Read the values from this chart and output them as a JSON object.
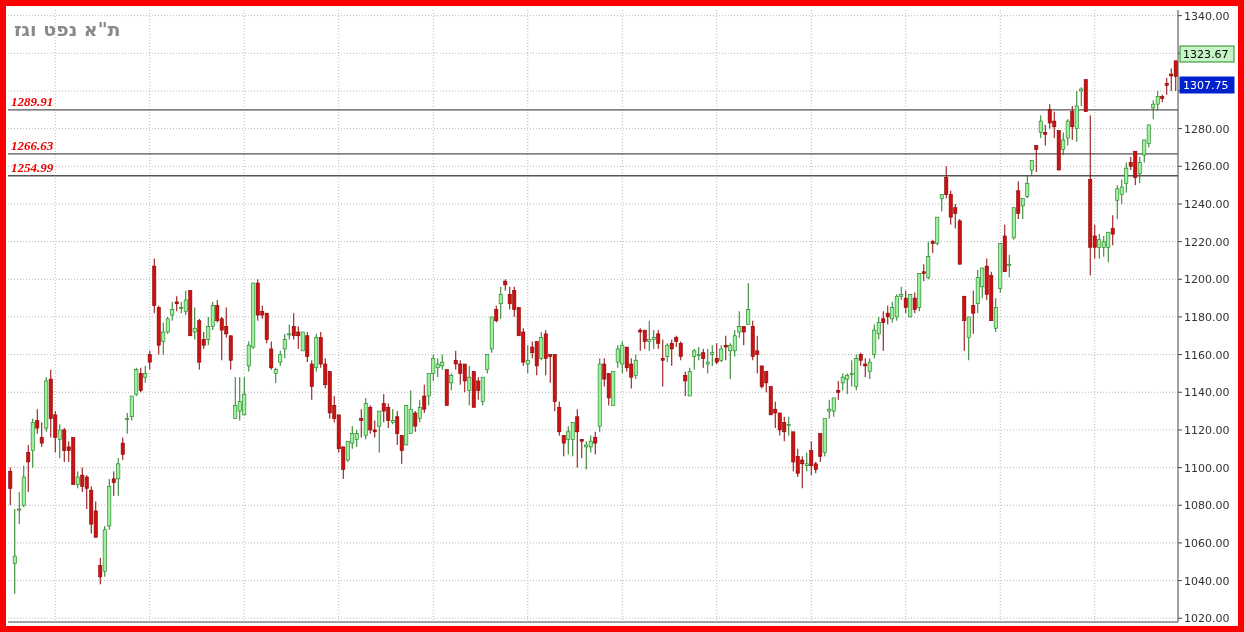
{
  "chart_data": {
    "type": "candlestick",
    "title": "ת\"א נפט וגז",
    "categories": [
      null,
      null,
      null,
      null,
      null,
      null,
      null,
      null,
      null,
      null,
      null,
      null,
      null,
      null,
      null,
      null,
      null,
      null,
      null,
      null,
      null,
      null,
      null,
      null,
      null,
      null,
      null,
      null,
      null,
      null,
      null,
      null,
      null,
      null,
      null,
      null,
      null,
      null,
      null,
      null,
      null,
      null,
      null,
      null,
      null,
      null,
      null,
      null,
      null,
      null,
      null,
      null,
      null,
      null,
      null,
      null,
      null,
      null,
      null,
      null,
      null,
      null,
      null,
      null,
      null,
      null,
      null,
      null,
      null,
      null,
      null,
      null,
      null,
      null,
      null,
      null,
      null,
      null,
      null,
      null,
      null,
      null,
      null,
      null,
      null,
      null,
      null,
      null,
      null,
      null,
      null,
      null,
      null,
      null,
      null,
      null,
      null,
      null,
      null,
      null,
      null,
      null,
      null,
      null,
      null,
      null,
      null,
      null,
      null,
      null,
      null,
      null,
      null,
      null,
      null,
      null,
      null,
      null,
      null,
      null,
      null,
      null,
      null,
      null,
      null,
      null,
      null,
      null,
      null,
      null,
      null,
      null,
      null,
      null,
      null,
      null,
      null,
      null,
      null,
      null,
      null,
      null,
      null,
      null,
      null,
      null,
      null,
      null,
      null,
      null,
      null,
      null,
      null,
      null,
      null,
      null,
      null,
      null,
      null,
      null,
      null,
      null,
      null,
      null,
      null,
      null,
      null,
      null,
      null,
      null,
      null,
      null,
      null,
      null,
      null,
      null,
      null,
      null,
      null,
      null,
      null,
      null,
      null,
      null,
      null,
      null,
      null,
      null,
      null,
      null,
      null,
      null,
      null,
      null,
      null,
      null,
      null,
      null,
      null,
      null,
      null,
      null,
      null,
      null,
      null,
      null,
      null,
      null,
      null,
      null,
      null,
      null,
      null,
      null,
      null,
      null,
      null,
      null,
      null,
      null,
      null,
      null,
      null,
      null,
      null,
      null,
      null,
      null,
      null,
      null,
      null,
      null,
      null,
      null,
      null,
      null,
      null,
      null,
      null,
      null,
      null,
      null,
      null,
      null,
      null,
      null,
      null,
      null,
      null,
      null,
      null,
      null,
      null,
      null,
      null,
      null,
      null,
      null,
      null,
      null
    ],
    "ohlc": [
      [
        1098,
        1100,
        1080,
        1089
      ],
      [
        1049,
        1078,
        1033,
        1053
      ],
      [
        1078,
        1087,
        1070,
        1078
      ],
      [
        1080,
        1101,
        1079,
        1095
      ],
      [
        1108,
        1112,
        1087,
        1103
      ],
      [
        1109,
        1126,
        1100,
        1124
      ],
      [
        1125,
        1131,
        1118,
        1121
      ],
      [
        1116,
        1124,
        1111,
        1113
      ],
      [
        1121,
        1148,
        1119,
        1146
      ],
      [
        1147,
        1152,
        1116,
        1126
      ],
      [
        1128,
        1130,
        1108,
        1116
      ],
      [
        1115,
        1123,
        1105,
        1120
      ],
      [
        1120,
        1121,
        1103,
        1109
      ],
      [
        1111,
        1114,
        1103,
        1109
      ],
      [
        1116,
        1116,
        1091,
        1091
      ],
      [
        1091,
        1098,
        1089,
        1095
      ],
      [
        1096,
        1100,
        1087,
        1090
      ],
      [
        1095,
        1096,
        1078,
        1089
      ],
      [
        1088,
        1090,
        1065,
        1070
      ],
      [
        1077,
        1082,
        1063,
        1063
      ],
      [
        1048,
        1052,
        1038,
        1042
      ],
      [
        1045,
        1069,
        1042,
        1067
      ],
      [
        1069,
        1094,
        1067,
        1090
      ],
      [
        1094,
        1098,
        1085,
        1092
      ],
      [
        1094,
        1105,
        1085,
        1102
      ],
      [
        1113,
        1116,
        1104,
        1107
      ],
      [
        1126,
        1129,
        1118,
        1126
      ],
      [
        1127,
        1138,
        1125,
        1138
      ],
      [
        1139,
        1153,
        1138,
        1152
      ],
      [
        1150,
        1153,
        1140,
        1141
      ],
      [
        1148,
        1154,
        1145,
        1150
      ],
      [
        1160,
        1162,
        1152,
        1156
      ],
      [
        1207,
        1211,
        1182,
        1186
      ],
      [
        1185,
        1186,
        1160,
        1165
      ],
      [
        1167,
        1177,
        1160,
        1172
      ],
      [
        1172,
        1180,
        1171,
        1179
      ],
      [
        1181,
        1188,
        1178,
        1184
      ],
      [
        1188,
        1191,
        1183,
        1187
      ],
      [
        1185,
        1188,
        1182,
        1185
      ],
      [
        1183,
        1194,
        1181,
        1189
      ],
      [
        1194,
        1194,
        1170,
        1170
      ],
      [
        1172,
        1185,
        1168,
        1174
      ],
      [
        1178,
        1179,
        1152,
        1156
      ],
      [
        1168,
        1172,
        1163,
        1165
      ],
      [
        1168,
        1180,
        1165,
        1175
      ],
      [
        1175,
        1188,
        1173,
        1186
      ],
      [
        1186,
        1189,
        1177,
        1178
      ],
      [
        1179,
        1180,
        1157,
        1173
      ],
      [
        1175,
        1185,
        1169,
        1171
      ],
      [
        1170,
        1170,
        1152,
        1157
      ],
      [
        1126,
        1148,
        1126,
        1133
      ],
      [
        1130,
        1148,
        1125,
        1135
      ],
      [
        1128,
        1148,
        1128,
        1139
      ],
      [
        1154,
        1167,
        1151,
        1165
      ],
      [
        1164,
        1198,
        1163,
        1198
      ],
      [
        1198,
        1200,
        1178,
        1181
      ],
      [
        1183,
        1186,
        1179,
        1181
      ],
      [
        1182,
        1182,
        1166,
        1168
      ],
      [
        1163,
        1167,
        1152,
        1153
      ],
      [
        1150,
        1153,
        1145,
        1152
      ],
      [
        1156,
        1162,
        1154,
        1160
      ],
      [
        1163,
        1171,
        1158,
        1168
      ],
      [
        1171,
        1176,
        1168,
        1171
      ],
      [
        1175,
        1182,
        1168,
        1170
      ],
      [
        1172,
        1175,
        1163,
        1170
      ],
      [
        1162,
        1172,
        1162,
        1172
      ],
      [
        1170,
        1172,
        1156,
        1159
      ],
      [
        1155,
        1157,
        1136,
        1143
      ],
      [
        1153,
        1171,
        1151,
        1169
      ],
      [
        1169,
        1172,
        1153,
        1155
      ],
      [
        1155,
        1158,
        1142,
        1144
      ],
      [
        1151,
        1151,
        1126,
        1129
      ],
      [
        1133,
        1138,
        1124,
        1126
      ],
      [
        1128,
        1128,
        1108,
        1110
      ],
      [
        1111,
        1111,
        1094,
        1099
      ],
      [
        1104,
        1114,
        1103,
        1114
      ],
      [
        1113,
        1122,
        1110,
        1118
      ],
      [
        1115,
        1120,
        1111,
        1118
      ],
      [
        1126,
        1131,
        1116,
        1125
      ],
      [
        1117,
        1137,
        1115,
        1134
      ],
      [
        1132,
        1133,
        1118,
        1120
      ],
      [
        1120,
        1125,
        1116,
        1119
      ],
      [
        1122,
        1130,
        1108,
        1130
      ],
      [
        1134,
        1139,
        1124,
        1130
      ],
      [
        1132,
        1134,
        1121,
        1125
      ],
      [
        1124,
        1131,
        1123,
        1125
      ],
      [
        1127,
        1130,
        1112,
        1118
      ],
      [
        1117,
        1117,
        1102,
        1109
      ],
      [
        1112,
        1133,
        1112,
        1133
      ],
      [
        1118,
        1141,
        1118,
        1131
      ],
      [
        1129,
        1130,
        1119,
        1122
      ],
      [
        1126,
        1136,
        1124,
        1132
      ],
      [
        1138,
        1144,
        1129,
        1131
      ],
      [
        1138,
        1150,
        1133,
        1150
      ],
      [
        1150,
        1160,
        1146,
        1158
      ],
      [
        1153,
        1158,
        1148,
        1155
      ],
      [
        1154,
        1160,
        1152,
        1156
      ],
      [
        1152,
        1152,
        1133,
        1133
      ],
      [
        1145,
        1150,
        1141,
        1149
      ],
      [
        1157,
        1162,
        1152,
        1155
      ],
      [
        1155,
        1157,
        1144,
        1150
      ],
      [
        1155,
        1155,
        1140,
        1146
      ],
      [
        1141,
        1154,
        1133,
        1148
      ],
      [
        1151,
        1151,
        1132,
        1132
      ],
      [
        1146,
        1148,
        1136,
        1141
      ],
      [
        1135,
        1148,
        1133,
        1148
      ],
      [
        1152,
        1160,
        1150,
        1160
      ],
      [
        1163,
        1180,
        1161,
        1180
      ],
      [
        1184,
        1186,
        1177,
        1178
      ],
      [
        1187,
        1196,
        1179,
        1192
      ],
      [
        1199,
        1200,
        1194,
        1197
      ],
      [
        1192,
        1196,
        1184,
        1187
      ],
      [
        1194,
        1196,
        1180,
        1184
      ],
      [
        1185,
        1185,
        1170,
        1170
      ],
      [
        1172,
        1174,
        1154,
        1156
      ],
      [
        1155,
        1165,
        1150,
        1157
      ],
      [
        1164,
        1167,
        1158,
        1161
      ],
      [
        1167,
        1167,
        1149,
        1154
      ],
      [
        1158,
        1172,
        1157,
        1169
      ],
      [
        1171,
        1173,
        1149,
        1158
      ],
      [
        1160,
        1160,
        1145,
        1159
      ],
      [
        1160,
        1160,
        1130,
        1135
      ],
      [
        1132,
        1135,
        1117,
        1119
      ],
      [
        1117,
        1117,
        1106,
        1113
      ],
      [
        1115,
        1122,
        1107,
        1119
      ],
      [
        1115,
        1124,
        1106,
        1124
      ],
      [
        1127,
        1131,
        1100,
        1119
      ],
      [
        1115,
        1115,
        1105,
        1114
      ],
      [
        1111,
        1114,
        1099,
        1112
      ],
      [
        1111,
        1117,
        1108,
        1114
      ],
      [
        1116,
        1119,
        1107,
        1113
      ],
      [
        1122,
        1158,
        1119,
        1155
      ],
      [
        1155,
        1158,
        1143,
        1147
      ],
      [
        1150,
        1150,
        1133,
        1137
      ],
      [
        1133,
        1151,
        1133,
        1151
      ],
      [
        1156,
        1165,
        1153,
        1163
      ],
      [
        1155,
        1167,
        1150,
        1165
      ],
      [
        1164,
        1164,
        1151,
        1153
      ],
      [
        1155,
        1158,
        1142,
        1148
      ],
      [
        1149,
        1160,
        1147,
        1157
      ],
      [
        1173,
        1174,
        1162,
        1172
      ],
      [
        1173,
        1173,
        1163,
        1167
      ],
      [
        1167,
        1178,
        1162,
        1168
      ],
      [
        1168,
        1173,
        1163,
        1169
      ],
      [
        1171,
        1173,
        1163,
        1166
      ],
      [
        1158,
        1168,
        1143,
        1157
      ],
      [
        1159,
        1166,
        1156,
        1165
      ],
      [
        1166,
        1168,
        1154,
        1163
      ],
      [
        1169,
        1170,
        1164,
        1167
      ],
      [
        1166,
        1167,
        1157,
        1159
      ],
      [
        1149,
        1151,
        1138,
        1146
      ],
      [
        1138,
        1153,
        1138,
        1151
      ],
      [
        1159,
        1163,
        1152,
        1162
      ],
      [
        1160,
        1164,
        1157,
        1160
      ],
      [
        1161,
        1163,
        1153,
        1158
      ],
      [
        1155,
        1163,
        1150,
        1156
      ],
      [
        1160,
        1165,
        1154,
        1161
      ],
      [
        1158,
        1166,
        1155,
        1156
      ],
      [
        1157,
        1165,
        1156,
        1163
      ],
      [
        1165,
        1170,
        1157,
        1164
      ],
      [
        1162,
        1166,
        1147,
        1165
      ],
      [
        1162,
        1173,
        1159,
        1170
      ],
      [
        1172,
        1183,
        1169,
        1175
      ],
      [
        1175,
        1175,
        1165,
        1172
      ],
      [
        1176,
        1198,
        1176,
        1184
      ],
      [
        1175,
        1178,
        1157,
        1159
      ],
      [
        1162,
        1170,
        1150,
        1160
      ],
      [
        1154,
        1154,
        1142,
        1143
      ],
      [
        1151,
        1151,
        1140,
        1145
      ],
      [
        1143,
        1143,
        1128,
        1128
      ],
      [
        1131,
        1135,
        1121,
        1129
      ],
      [
        1129,
        1129,
        1117,
        1120
      ],
      [
        1124,
        1127,
        1114,
        1119
      ],
      [
        1123,
        1127,
        1117,
        1123
      ],
      [
        1119,
        1119,
        1098,
        1103
      ],
      [
        1106,
        1110,
        1095,
        1097
      ],
      [
        1104,
        1106,
        1089,
        1102
      ],
      [
        1101,
        1108,
        1098,
        1102
      ],
      [
        1109,
        1114,
        1096,
        1101
      ],
      [
        1102,
        1103,
        1097,
        1099
      ],
      [
        1118,
        1118,
        1103,
        1106
      ],
      [
        1108,
        1126,
        1106,
        1126
      ],
      [
        1130,
        1136,
        1126,
        1131
      ],
      [
        1130,
        1137,
        1127,
        1137
      ],
      [
        1141,
        1146,
        1136,
        1140
      ],
      [
        1145,
        1150,
        1141,
        1148
      ],
      [
        1147,
        1150,
        1139,
        1149
      ],
      [
        1150,
        1157,
        1143,
        1150
      ],
      [
        1143,
        1160,
        1141,
        1158
      ],
      [
        1160,
        1161,
        1154,
        1157
      ],
      [
        1155,
        1158,
        1148,
        1154
      ],
      [
        1151,
        1158,
        1147,
        1156
      ],
      [
        1160,
        1176,
        1158,
        1173
      ],
      [
        1171,
        1180,
        1168,
        1177
      ],
      [
        1179,
        1183,
        1162,
        1177
      ],
      [
        1182,
        1186,
        1176,
        1180
      ],
      [
        1179,
        1188,
        1177,
        1185
      ],
      [
        1180,
        1192,
        1178,
        1191
      ],
      [
        1191,
        1196,
        1189,
        1192
      ],
      [
        1190,
        1194,
        1182,
        1185
      ],
      [
        1180,
        1192,
        1180,
        1192
      ],
      [
        1190,
        1193,
        1182,
        1184
      ],
      [
        1185,
        1203,
        1183,
        1203
      ],
      [
        1204,
        1208,
        1199,
        1203
      ],
      [
        1201,
        1220,
        1200,
        1212
      ],
      [
        1220,
        1221,
        1214,
        1219
      ],
      [
        1219,
        1233,
        1218,
        1233
      ],
      [
        1243,
        1245,
        1236,
        1245
      ],
      [
        1254,
        1260,
        1243,
        1245
      ],
      [
        1245,
        1247,
        1229,
        1233
      ],
      [
        1238,
        1240,
        1227,
        1235
      ],
      [
        1231,
        1232,
        1208,
        1208
      ],
      [
        1191,
        1191,
        1162,
        1178
      ],
      [
        1169,
        1180,
        1157,
        1180
      ],
      [
        1186,
        1194,
        1171,
        1182
      ],
      [
        1187,
        1205,
        1182,
        1201
      ],
      [
        1196,
        1206,
        1190,
        1206
      ],
      [
        1207,
        1211,
        1189,
        1192
      ],
      [
        1202,
        1204,
        1178,
        1178
      ],
      [
        1174,
        1190,
        1172,
        1185
      ],
      [
        1195,
        1219,
        1193,
        1219
      ],
      [
        1223,
        1229,
        1204,
        1204
      ],
      [
        1208,
        1213,
        1201,
        1208
      ],
      [
        1222,
        1238,
        1221,
        1238
      ],
      [
        1247,
        1252,
        1232,
        1235
      ],
      [
        1239,
        1243,
        1232,
        1243
      ],
      [
        1244,
        1255,
        1243,
        1251
      ],
      [
        1258,
        1263,
        1255,
        1263
      ],
      [
        1271,
        1271,
        1257,
        1269
      ],
      [
        1278,
        1287,
        1275,
        1284
      ],
      [
        1278,
        1282,
        1271,
        1277
      ],
      [
        1290,
        1293,
        1280,
        1283
      ],
      [
        1284,
        1289,
        1275,
        1281
      ],
      [
        1279,
        1279,
        1258,
        1258
      ],
      [
        1269,
        1278,
        1266,
        1274
      ],
      [
        1275,
        1285,
        1271,
        1284
      ],
      [
        1289,
        1292,
        1274,
        1281
      ],
      [
        1280,
        1300,
        1273,
        1292
      ],
      [
        1300,
        1302,
        1292,
        1301
      ],
      [
        1306,
        1306,
        1289,
        1289
      ],
      [
        1253,
        1287,
        1202,
        1217
      ],
      [
        1223,
        1229,
        1211,
        1217
      ],
      [
        1217,
        1224,
        1211,
        1221
      ],
      [
        1217,
        1223,
        1212,
        1220
      ],
      [
        1217,
        1225,
        1209,
        1225
      ],
      [
        1227,
        1234,
        1218,
        1224
      ],
      [
        1242,
        1250,
        1232,
        1248
      ],
      [
        1245,
        1253,
        1240,
        1249
      ],
      [
        1251,
        1262,
        1246,
        1259
      ],
      [
        1262,
        1265,
        1258,
        1260
      ],
      [
        1268,
        1268,
        1250,
        1254
      ],
      [
        1256,
        1265,
        1251,
        1262
      ],
      [
        1266,
        1274,
        1262,
        1274
      ],
      [
        1272,
        1282,
        1270,
        1282
      ],
      [
        1291,
        1295,
        1285,
        1293
      ],
      [
        1293,
        1300,
        1290,
        1297
      ],
      [
        1297,
        1298,
        1294,
        1296
      ],
      [
        1304,
        1307,
        1298,
        1303
      ],
      [
        1309,
        1312,
        1300,
        1308
      ],
      [
        1316,
        1316,
        1300,
        1307.75
      ]
    ],
    "ylim": [
      1018,
      1343
    ],
    "yticks": [
      {
        "value": 1020,
        "label": "1020.00"
      },
      {
        "value": 1040,
        "label": "1040.00"
      },
      {
        "value": 1060,
        "label": "1060.00"
      },
      {
        "value": 1080,
        "label": "1080.00"
      },
      {
        "value": 1100,
        "label": "1100.00"
      },
      {
        "value": 1120,
        "label": "1120.00"
      },
      {
        "value": 1140,
        "label": "1140.00"
      },
      {
        "value": 1160,
        "label": "1160.00"
      },
      {
        "value": 1180,
        "label": "1180.00"
      },
      {
        "value": 1200,
        "label": "1200.00"
      },
      {
        "value": 1220,
        "label": "1220.00"
      },
      {
        "value": 1240,
        "label": "1240.00"
      },
      {
        "value": 1260,
        "label": "1260.00"
      },
      {
        "value": 1280,
        "label": "1280.00"
      },
      {
        "value": 1300,
        "label": null
      },
      {
        "value": 1320,
        "label": null
      },
      {
        "value": 1340,
        "label": "1340.00"
      }
    ],
    "ref_lines": [
      {
        "axis": "y",
        "value": 1289.91,
        "label": "1289.91"
      },
      {
        "axis": "y",
        "value": 1266.63,
        "label": "1266.63"
      },
      {
        "axis": "y",
        "value": 1254.99,
        "label": "1254.99"
      }
    ],
    "annotations": [
      "1323.67",
      "1307.75"
    ],
    "grid": true,
    "tick_labels": "y"
  }
}
